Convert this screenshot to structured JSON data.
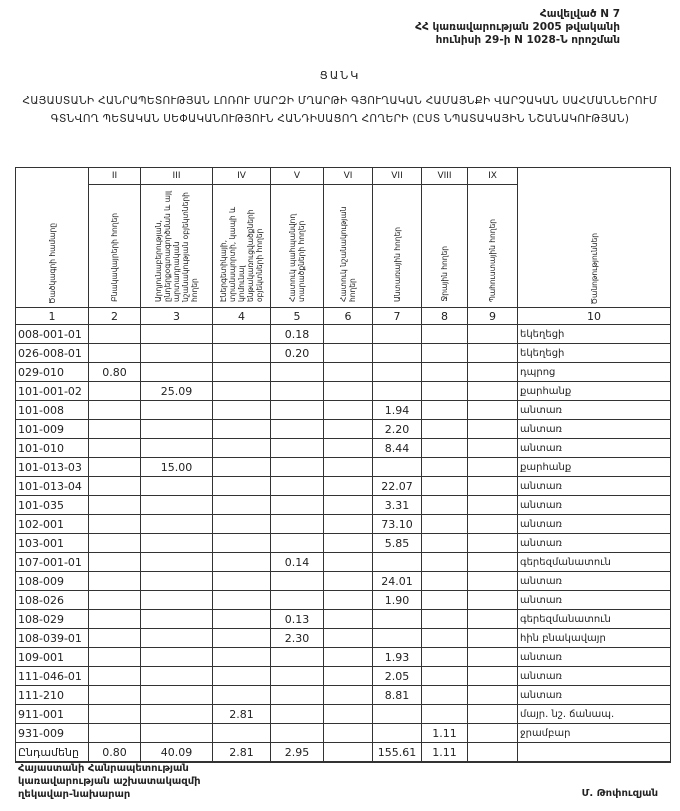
{
  "annex": {
    "line1": "Հավելված N 7",
    "line2": "ՀՀ կառավարության 2005 թվականի",
    "line3": "հունիսի 29-ի N 1028-Ն որոշման"
  },
  "title": "ՑԱՆԿ",
  "subtitle": "ՀԱՅԱՍՏԱՆԻ ՀԱՆՐԱՊԵՏՈՒԹՅԱՆ ԼՈՌՈՒ ՄԱՐԶԻ ՄՂԱՐԹԻ ԳՅՈՒՂԱԿԱՆ ՀԱՄԱՅՆՔԻ ՎԱՐՉԱԿԱՆ ՍԱՀՄԱՆՆԵՐՈՒՄ ԳՏՆՎՈՂ ՊԵՏԱԿԱՆ ՍԵՓԱԿԱՆՈՒԹՅՈՒՆ ՀԱՆԴԻՍԱՑՈՂ ՀՈՂԵՐԻ (ԸՍՏ ՆՊԱՏԱԿԱՅԻՆ ՆՇԱՆԱԿՈՒԹՅԱՆ)",
  "table": {
    "roman": [
      "",
      "II",
      "III",
      "IV",
      "V",
      "VI",
      "VII",
      "VIII",
      "IX",
      ""
    ],
    "headers": [
      "Ծածկագրի համարը",
      "Բնակավայրերի հողեր",
      "Արդյունաբերության, ընդերքօգտագործման և այլ արտադրական նշանակության օբյեկտների հողեր",
      "Էներգետիկայի, տրանսպորտի, կապի և կոմունալ ենթակառուցվածքների օբյեկտների հողեր",
      "Հատուկ պահպանվող տարածքների հողեր",
      "Հատուկ նշանակության հողեր",
      "Անտառային հողեր",
      "Ջրային հողեր",
      "Պահուստային հողեր",
      "Ծանոթություններ"
    ],
    "col_numbers": [
      "1",
      "2",
      "3",
      "4",
      "5",
      "6",
      "7",
      "8",
      "9",
      "10"
    ],
    "rows": [
      [
        "008-001-01",
        "",
        "",
        "",
        "0.18",
        "",
        "",
        "",
        "",
        "եկեղեցի"
      ],
      [
        "026-008-01",
        "",
        "",
        "",
        "0.20",
        "",
        "",
        "",
        "",
        "եկեղեցի"
      ],
      [
        "029-010",
        "0.80",
        "",
        "",
        "",
        "",
        "",
        "",
        "",
        "դպրոց"
      ],
      [
        "101-001-02",
        "",
        "25.09",
        "",
        "",
        "",
        "",
        "",
        "",
        "քարհանք"
      ],
      [
        "101-008",
        "",
        "",
        "",
        "",
        "",
        "1.94",
        "",
        "",
        "անտառ"
      ],
      [
        "101-009",
        "",
        "",
        "",
        "",
        "",
        "2.20",
        "",
        "",
        "անտառ"
      ],
      [
        "101-010",
        "",
        "",
        "",
        "",
        "",
        "8.44",
        "",
        "",
        "անտառ"
      ],
      [
        "101-013-03",
        "",
        "15.00",
        "",
        "",
        "",
        "",
        "",
        "",
        "քարհանք"
      ],
      [
        "101-013-04",
        "",
        "",
        "",
        "",
        "",
        "22.07",
        "",
        "",
        "անտառ"
      ],
      [
        "101-035",
        "",
        "",
        "",
        "",
        "",
        "3.31",
        "",
        "",
        "անտառ"
      ],
      [
        "102-001",
        "",
        "",
        "",
        "",
        "",
        "73.10",
        "",
        "",
        "անտառ"
      ],
      [
        "103-001",
        "",
        "",
        "",
        "",
        "",
        "5.85",
        "",
        "",
        "անտառ"
      ],
      [
        "107-001-01",
        "",
        "",
        "",
        "0.14",
        "",
        "",
        "",
        "",
        "գերեզմանատուն"
      ],
      [
        "108-009",
        "",
        "",
        "",
        "",
        "",
        "24.01",
        "",
        "",
        "անտառ"
      ],
      [
        "108-026",
        "",
        "",
        "",
        "",
        "",
        "1.90",
        "",
        "",
        "անտառ"
      ],
      [
        "108-029",
        "",
        "",
        "",
        "0.13",
        "",
        "",
        "",
        "",
        "գերեզմանատուն"
      ],
      [
        "108-039-01",
        "",
        "",
        "",
        "2.30",
        "",
        "",
        "",
        "",
        "հին բնակավայր"
      ],
      [
        "109-001",
        "",
        "",
        "",
        "",
        "",
        "1.93",
        "",
        "",
        "անտառ"
      ],
      [
        "111-046-01",
        "",
        "",
        "",
        "",
        "",
        "2.05",
        "",
        "",
        "անտառ"
      ],
      [
        "111-210",
        "",
        "",
        "",
        "",
        "",
        "8.81",
        "",
        "",
        "անտառ"
      ],
      [
        "911-001",
        "",
        "",
        "2.81",
        "",
        "",
        "",
        "",
        "",
        "մայր. նշ. ճանապ."
      ],
      [
        "931-009",
        "",
        "",
        "",
        "",
        "",
        "",
        "1.11",
        "",
        "ջրամբար"
      ]
    ],
    "total": [
      "Ընդամենը",
      "0.80",
      "40.09",
      "2.81",
      "2.95",
      "",
      "155.61",
      "1.11",
      "",
      ""
    ]
  },
  "footer": {
    "position_line1": "Հայաստանի Հանրապետության",
    "position_line2": "կառավարության աշխատակազմի",
    "position_line3": "ղեկավար-նախարար",
    "signatory": "Մ. Թոփուզյան"
  }
}
